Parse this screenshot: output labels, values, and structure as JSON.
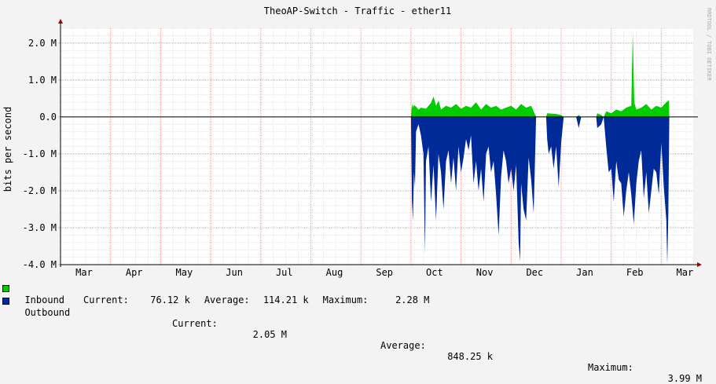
{
  "chart_data": {
    "type": "area",
    "title": "TheoAP-Switch - Traffic - ether11",
    "ylabel": "bits per second",
    "watermark": "RRDTOOL / TOBI OETIKER",
    "ylim": [
      -4000000,
      2400000
    ],
    "y_ticks": [
      {
        "value": 2000000,
        "label": "2.0 M"
      },
      {
        "value": 1000000,
        "label": "1.0 M"
      },
      {
        "value": 0,
        "label": "0.0"
      },
      {
        "value": -1000000,
        "label": "-1.0 M"
      },
      {
        "value": -2000000,
        "label": "-2.0 M"
      },
      {
        "value": -3000000,
        "label": "-3.0 M"
      },
      {
        "value": -4000000,
        "label": "-4.0 M"
      }
    ],
    "months": [
      "Mar",
      "Apr",
      "May",
      "Jun",
      "Jul",
      "Aug",
      "Sep",
      "Oct",
      "Nov",
      "Dec",
      "Jan",
      "Feb",
      "Mar"
    ],
    "series": [
      {
        "name": "Inbound",
        "color": "#00cc00",
        "current": "76.12 k",
        "average": "114.21 k",
        "maximum": "2.28 M",
        "points": [
          [
            7.0,
            0
          ],
          [
            7.02,
            0.35
          ],
          [
            7.04,
            0.25
          ],
          [
            7.06,
            0.32
          ],
          [
            7.1,
            0.28
          ],
          [
            7.15,
            0.2
          ],
          [
            7.2,
            0.25
          ],
          [
            7.3,
            0.22
          ],
          [
            7.4,
            0.38
          ],
          [
            7.45,
            0.55
          ],
          [
            7.5,
            0.3
          ],
          [
            7.55,
            0.45
          ],
          [
            7.6,
            0.2
          ],
          [
            7.7,
            0.3
          ],
          [
            7.8,
            0.25
          ],
          [
            7.9,
            0.35
          ],
          [
            8.0,
            0.22
          ],
          [
            8.1,
            0.3
          ],
          [
            8.2,
            0.25
          ],
          [
            8.3,
            0.4
          ],
          [
            8.4,
            0.2
          ],
          [
            8.5,
            0.35
          ],
          [
            8.6,
            0.25
          ],
          [
            8.7,
            0.3
          ],
          [
            8.8,
            0.2
          ],
          [
            8.9,
            0.25
          ],
          [
            9.0,
            0.3
          ],
          [
            9.1,
            0.2
          ],
          [
            9.2,
            0.35
          ],
          [
            9.3,
            0.25
          ],
          [
            9.4,
            0.3
          ],
          [
            9.5,
            0
          ],
          [
            9.7,
            0
          ],
          [
            9.72,
            0.1
          ],
          [
            9.9,
            0.08
          ],
          [
            10.0,
            0.05
          ],
          [
            10.05,
            0
          ],
          [
            10.3,
            0
          ],
          [
            10.35,
            0.05
          ],
          [
            10.4,
            0
          ],
          [
            10.7,
            0
          ],
          [
            10.72,
            0.1
          ],
          [
            10.8,
            0.05
          ],
          [
            10.85,
            0
          ],
          [
            10.9,
            0.15
          ],
          [
            11.0,
            0.1
          ],
          [
            11.1,
            0.2
          ],
          [
            11.2,
            0.15
          ],
          [
            11.3,
            0.25
          ],
          [
            11.4,
            0.3
          ],
          [
            11.43,
            2.28
          ],
          [
            11.46,
            0.4
          ],
          [
            11.5,
            0.2
          ],
          [
            11.6,
            0.25
          ],
          [
            11.7,
            0.35
          ],
          [
            11.8,
            0.2
          ],
          [
            11.9,
            0.3
          ],
          [
            12.0,
            0.25
          ],
          [
            12.1,
            0.4
          ],
          [
            12.15,
            0.45
          ],
          [
            12.16,
            0
          ]
        ]
      },
      {
        "name": "Outbound",
        "color": "#002a97",
        "current": "2.05 M",
        "average": "848.25 k",
        "maximum": "3.99 M",
        "points": [
          [
            7.0,
            0
          ],
          [
            7.02,
            -2.3
          ],
          [
            7.04,
            -2.8
          ],
          [
            7.06,
            -1.5
          ],
          [
            7.08,
            -1.9
          ],
          [
            7.1,
            -0.4
          ],
          [
            7.15,
            -0.2
          ],
          [
            7.2,
            -0.5
          ],
          [
            7.25,
            -1.0
          ],
          [
            7.28,
            -3.7
          ],
          [
            7.3,
            -1.2
          ],
          [
            7.35,
            -0.8
          ],
          [
            7.4,
            -2.3
          ],
          [
            7.45,
            -1.3
          ],
          [
            7.5,
            -2.8
          ],
          [
            7.55,
            -1.0
          ],
          [
            7.6,
            -1.5
          ],
          [
            7.65,
            -2.5
          ],
          [
            7.7,
            -1.2
          ],
          [
            7.75,
            -0.9
          ],
          [
            7.8,
            -1.8
          ],
          [
            7.85,
            -1.1
          ],
          [
            7.9,
            -2.0
          ],
          [
            7.95,
            -0.8
          ],
          [
            8.0,
            -1.5
          ],
          [
            8.05,
            -1.1
          ],
          [
            8.1,
            -0.6
          ],
          [
            8.15,
            -0.9
          ],
          [
            8.2,
            -0.5
          ],
          [
            8.25,
            -1.8
          ],
          [
            8.3,
            -1.2
          ],
          [
            8.35,
            -2.0
          ],
          [
            8.4,
            -1.4
          ],
          [
            8.45,
            -2.3
          ],
          [
            8.5,
            -1.0
          ],
          [
            8.55,
            -0.8
          ],
          [
            8.6,
            -1.5
          ],
          [
            8.65,
            -1.2
          ],
          [
            8.7,
            -2.1
          ],
          [
            8.75,
            -3.2
          ],
          [
            8.8,
            -1.6
          ],
          [
            8.85,
            -0.9
          ],
          [
            8.9,
            -1.2
          ],
          [
            8.95,
            -1.8
          ],
          [
            9.0,
            -1.4
          ],
          [
            9.05,
            -2.0
          ],
          [
            9.1,
            -1.3
          ],
          [
            9.15,
            -3.4
          ],
          [
            9.18,
            -3.9
          ],
          [
            9.2,
            -1.8
          ],
          [
            9.25,
            -2.5
          ],
          [
            9.3,
            -2.8
          ],
          [
            9.35,
            -1.1
          ],
          [
            9.4,
            -1.7
          ],
          [
            9.45,
            -2.6
          ],
          [
            9.5,
            0
          ],
          [
            9.7,
            0
          ],
          [
            9.72,
            -0.6
          ],
          [
            9.75,
            -1.0
          ],
          [
            9.8,
            -0.8
          ],
          [
            9.85,
            -1.4
          ],
          [
            9.9,
            -0.8
          ],
          [
            9.95,
            -1.9
          ],
          [
            10.0,
            -0.7
          ],
          [
            10.05,
            0
          ],
          [
            10.3,
            0
          ],
          [
            10.35,
            -0.3
          ],
          [
            10.4,
            0
          ],
          [
            10.7,
            0
          ],
          [
            10.72,
            -0.3
          ],
          [
            10.8,
            -0.2
          ],
          [
            10.85,
            0
          ],
          [
            10.9,
            -0.8
          ],
          [
            10.95,
            -1.5
          ],
          [
            11.0,
            -1.4
          ],
          [
            11.05,
            -2.3
          ],
          [
            11.1,
            -1.2
          ],
          [
            11.15,
            -1.7
          ],
          [
            11.2,
            -1.8
          ],
          [
            11.25,
            -2.7
          ],
          [
            11.3,
            -2.0
          ],
          [
            11.35,
            -1.5
          ],
          [
            11.4,
            -2.1
          ],
          [
            11.45,
            -2.9
          ],
          [
            11.5,
            -1.8
          ],
          [
            11.55,
            -1.2
          ],
          [
            11.6,
            -0.9
          ],
          [
            11.65,
            -2.2
          ],
          [
            11.7,
            -1.5
          ],
          [
            11.75,
            -2.6
          ],
          [
            11.8,
            -2.0
          ],
          [
            11.85,
            -1.4
          ],
          [
            11.9,
            -1.5
          ],
          [
            11.95,
            -2.1
          ],
          [
            12.0,
            -0.7
          ],
          [
            12.05,
            -1.9
          ],
          [
            12.1,
            -2.8
          ],
          [
            12.12,
            -3.99
          ],
          [
            12.14,
            -2.7
          ],
          [
            12.16,
            0
          ]
        ]
      }
    ]
  },
  "legend": {
    "inbound": {
      "label": "Inbound",
      "current_label": "Current:",
      "current": "76.12 k",
      "average_label": "Average:",
      "average": "114.21 k",
      "maximum_label": "Maximum:",
      "maximum": "2.28 M"
    },
    "outbound": {
      "label": "Outbound",
      "current_label": "Current:",
      "current": "2.05 M",
      "average_label": "Average:",
      "average": "848.25 k",
      "maximum_label": "Maximum:",
      "maximum": "3.99 M"
    }
  }
}
